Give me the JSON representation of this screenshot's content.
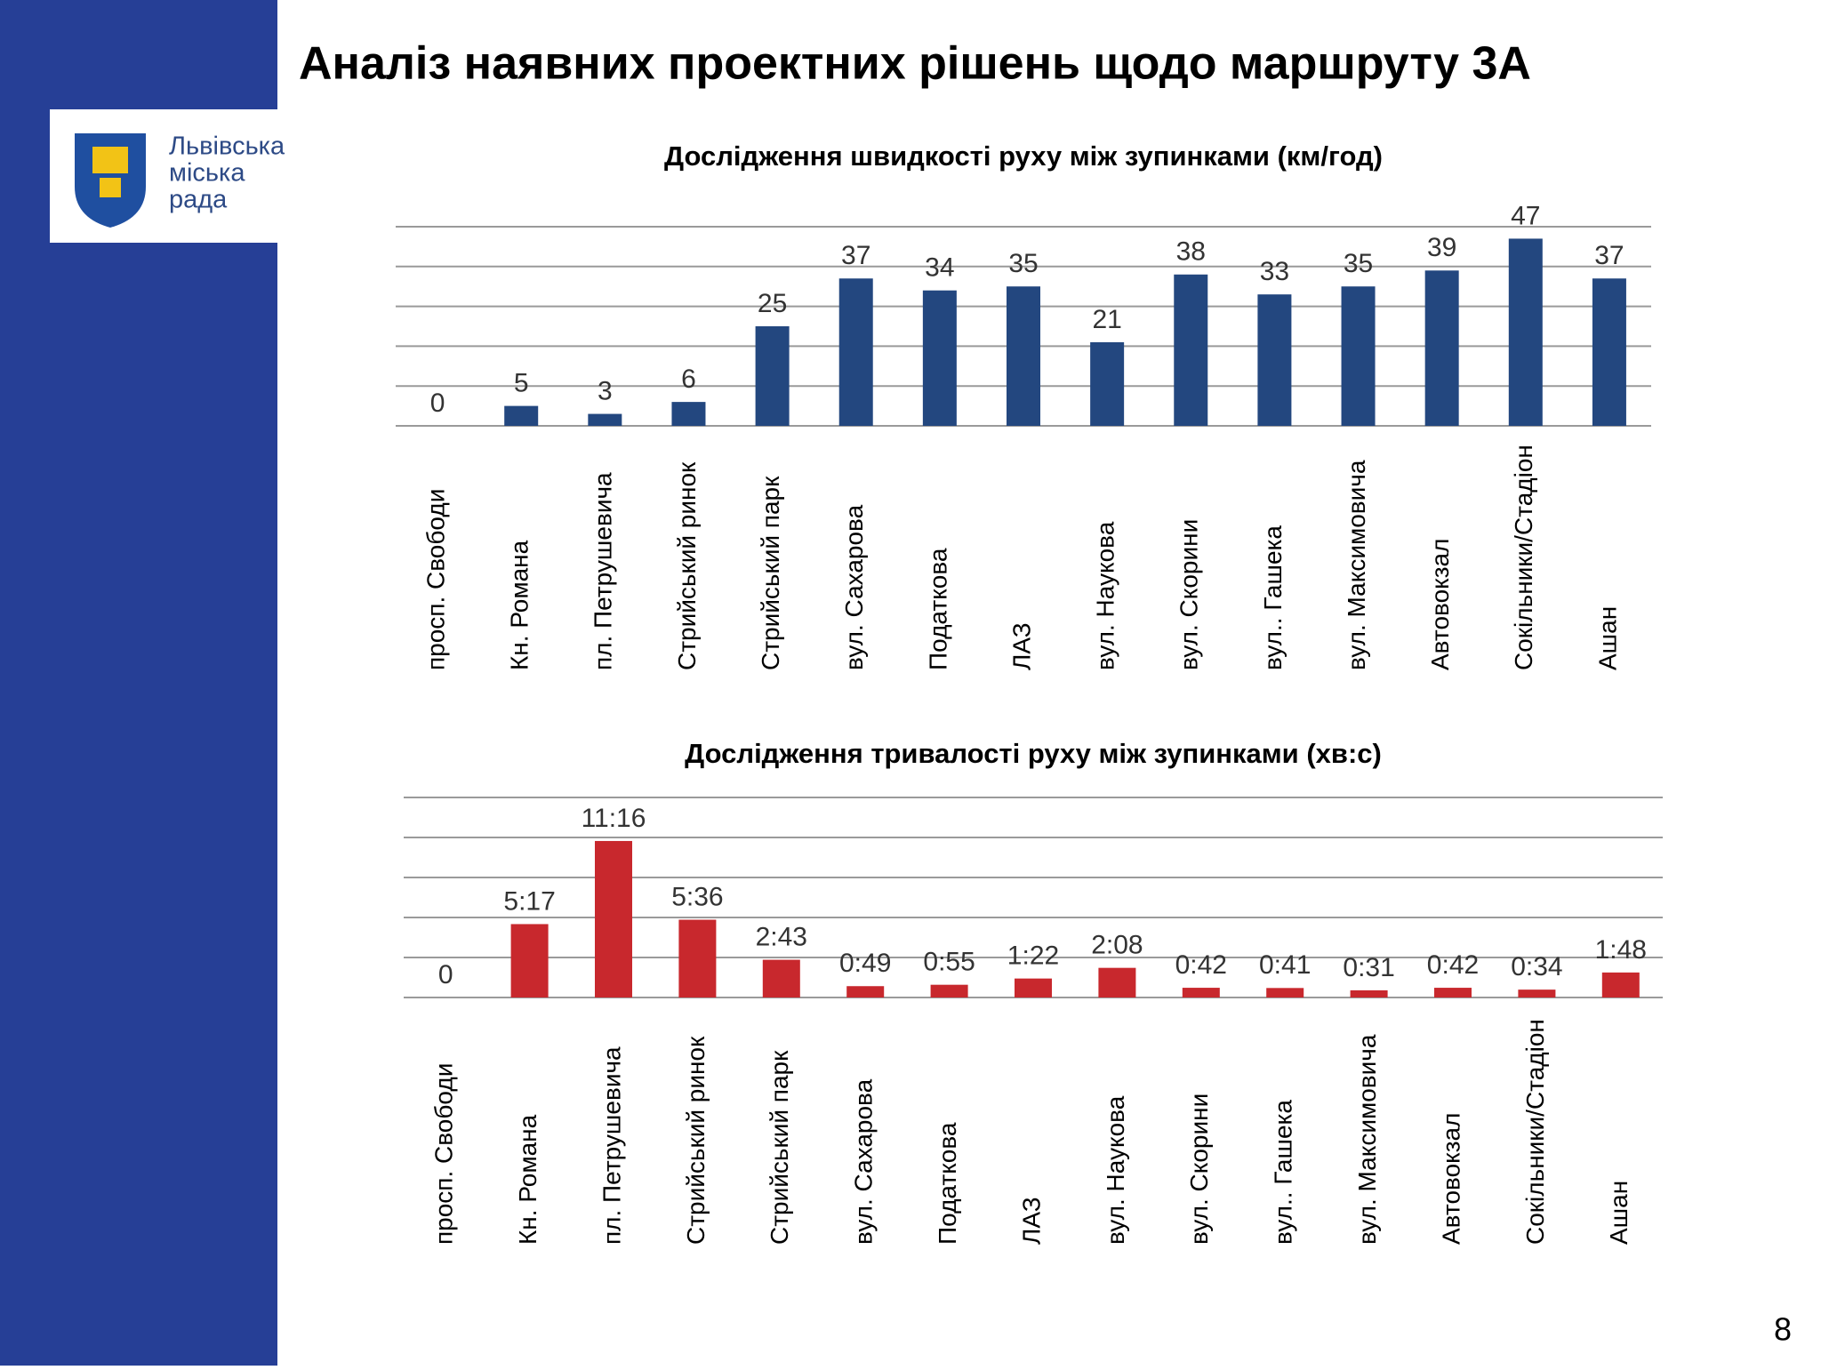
{
  "header": {
    "title": "Аналіз наявних проектних рішень щодо маршруту 3А"
  },
  "logo": {
    "lines": [
      "Львівська",
      "міська",
      "рада"
    ]
  },
  "page_number": "8",
  "chart_data": [
    {
      "type": "bar",
      "title": "Дослідження швидкості руху між зупинками (км/год)",
      "categories": [
        "просп. Свободи",
        "Кн. Романа",
        "пл. Петрушевича",
        "Стрийський ринок",
        "Стрийський парк",
        "вул. Сахарова",
        "Податкова",
        "ЛАЗ",
        "вул. Наукова",
        "вул. Скорини",
        "вул.. Гашека",
        "вул. Максимовича",
        "Автовокзал",
        "Сокільники/Стадіон",
        "Ашан"
      ],
      "values": [
        0,
        5,
        3,
        6,
        25,
        37,
        34,
        35,
        21,
        38,
        33,
        35,
        39,
        47,
        37
      ],
      "color": "#23477f",
      "ylim": [
        0,
        50
      ],
      "yticks": [
        0,
        10,
        20,
        30,
        40,
        50
      ],
      "grid": true
    },
    {
      "type": "bar",
      "title": "Дослідження тривалості руху між зупинками (хв:с)",
      "categories": [
        "просп. Свободи",
        "Кн. Романа",
        "пл. Петрушевича",
        "Стрийський ринок",
        "Стрийський парк",
        "вул. Сахарова",
        "Податкова",
        "ЛАЗ",
        "вул. Наукова",
        "вул. Скорини",
        "вул.. Гашека",
        "вул. Максимовича",
        "Автовокзал",
        "Сокільники/Стадіон",
        "Ашан"
      ],
      "values": [
        0,
        317,
        676,
        336,
        163,
        49,
        55,
        82,
        128,
        42,
        41,
        31,
        42,
        34,
        108
      ],
      "value_labels": [
        "0",
        "5:17",
        "11:16",
        "5:36",
        "2:43",
        "0:49",
        "0:55",
        "1:22",
        "2:08",
        "0:42",
        "0:41",
        "0:31",
        "0:42",
        "0:34",
        "1:48"
      ],
      "color": "#c8282d",
      "ylim": [
        0,
        864
      ],
      "yticks": [
        0,
        172.8,
        345.6,
        518.4,
        691.2,
        864
      ],
      "grid": true
    }
  ]
}
